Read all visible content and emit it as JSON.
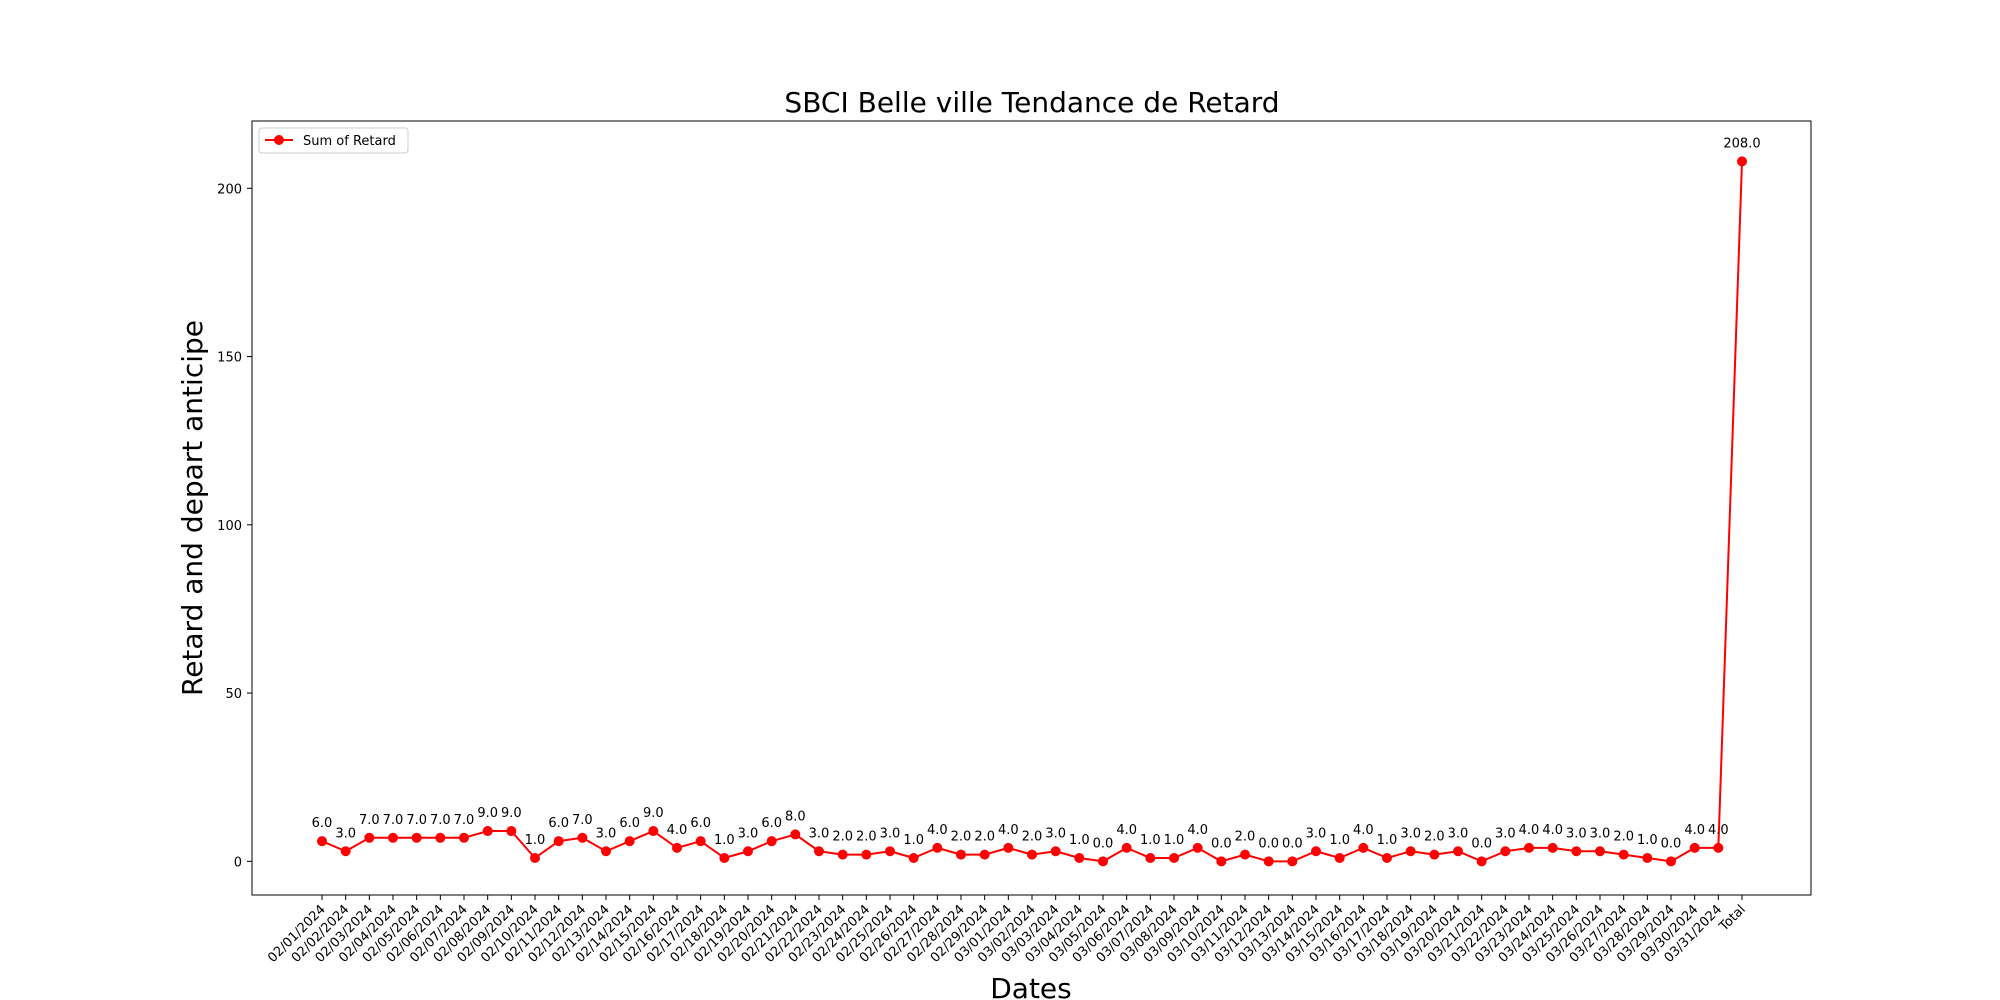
{
  "chart_data": {
    "type": "line",
    "title": "SBCI Belle ville Tendance de Retard",
    "xlabel": "Dates",
    "ylabel": "Retard and depart anticipe",
    "ylim": [
      -10,
      220
    ],
    "yticks": [
      0,
      50,
      100,
      150,
      200
    ],
    "grid": false,
    "legend_position": "top-left",
    "color": "#ff0000",
    "categories": [
      "02/01/2024",
      "02/02/2024",
      "02/03/2024",
      "02/04/2024",
      "02/05/2024",
      "02/06/2024",
      "02/07/2024",
      "02/08/2024",
      "02/09/2024",
      "02/10/2024",
      "02/11/2024",
      "02/12/2024",
      "02/13/2024",
      "02/14/2024",
      "02/15/2024",
      "02/16/2024",
      "02/17/2024",
      "02/18/2024",
      "02/19/2024",
      "02/20/2024",
      "02/21/2024",
      "02/22/2024",
      "02/23/2024",
      "02/24/2024",
      "02/25/2024",
      "02/26/2024",
      "02/27/2024",
      "02/28/2024",
      "02/29/2024",
      "03/01/2024",
      "03/02/2024",
      "03/03/2024",
      "03/04/2024",
      "03/05/2024",
      "03/06/2024",
      "03/07/2024",
      "03/08/2024",
      "03/09/2024",
      "03/10/2024",
      "03/11/2024",
      "03/12/2024",
      "03/13/2024",
      "03/14/2024",
      "03/15/2024",
      "03/16/2024",
      "03/17/2024",
      "03/18/2024",
      "03/19/2024",
      "03/20/2024",
      "03/21/2024",
      "03/22/2024",
      "03/23/2024",
      "03/24/2024",
      "03/25/2024",
      "03/26/2024",
      "03/27/2024",
      "03/28/2024",
      "03/29/2024",
      "03/30/2024",
      "03/31/2024",
      "Total"
    ],
    "series": [
      {
        "name": "Sum of Retard",
        "values": [
          6,
          3,
          7,
          7,
          7,
          7,
          7,
          9,
          9,
          1,
          6,
          7,
          3,
          6,
          9,
          4,
          6,
          1,
          3,
          6,
          8,
          3,
          2,
          2,
          3,
          1,
          4,
          2,
          2,
          4,
          2,
          3,
          1,
          0,
          4,
          1,
          1,
          4,
          0,
          2,
          0,
          0,
          3,
          1,
          4,
          1,
          3,
          2,
          3,
          0,
          3,
          4,
          4,
          3,
          3,
          2,
          1,
          0,
          4,
          4,
          208
        ]
      }
    ]
  }
}
